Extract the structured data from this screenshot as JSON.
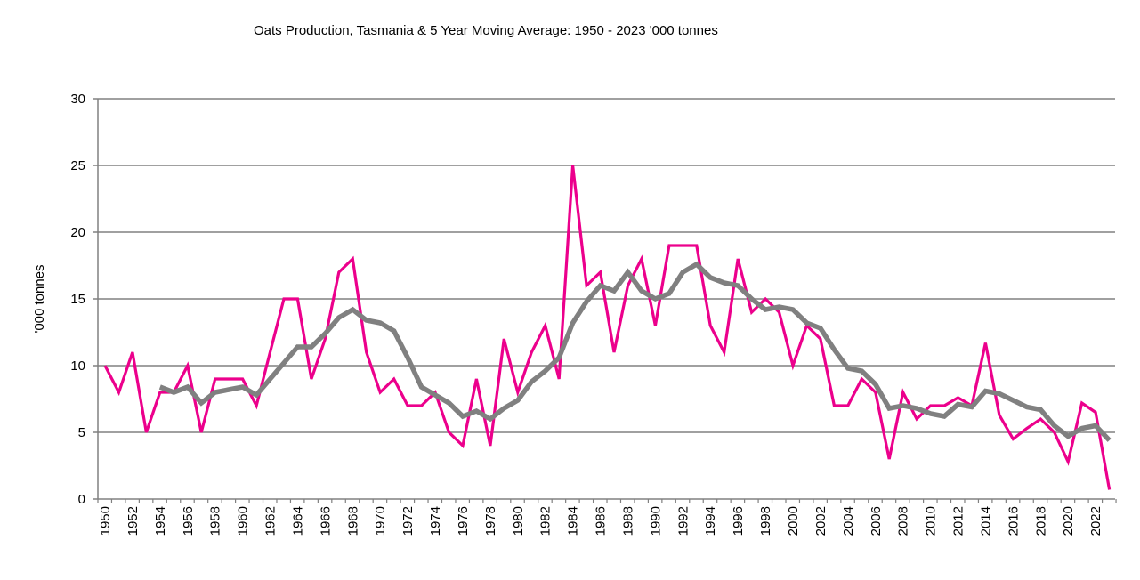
{
  "chart_data": {
    "type": "line",
    "title": "Oats Production, Tasmania & 5 Year Moving Average: 1950 - 2023  '000 tonnes",
    "xlabel": "",
    "ylabel": "'000 tonnes",
    "ylim": [
      0,
      30
    ],
    "yticks": [
      0,
      5,
      10,
      15,
      20,
      25,
      30
    ],
    "xlim": [
      1950,
      2023
    ],
    "xtick_step": 2,
    "grid": true,
    "legend": "none",
    "x": [
      1950,
      1951,
      1952,
      1953,
      1954,
      1955,
      1956,
      1957,
      1958,
      1959,
      1960,
      1961,
      1962,
      1963,
      1964,
      1965,
      1966,
      1967,
      1968,
      1969,
      1970,
      1971,
      1972,
      1973,
      1974,
      1975,
      1976,
      1977,
      1978,
      1979,
      1980,
      1981,
      1982,
      1983,
      1984,
      1985,
      1986,
      1987,
      1988,
      1989,
      1990,
      1991,
      1992,
      1993,
      1994,
      1995,
      1996,
      1997,
      1998,
      1999,
      2000,
      2001,
      2002,
      2003,
      2004,
      2005,
      2006,
      2007,
      2008,
      2009,
      2010,
      2011,
      2012,
      2013,
      2014,
      2015,
      2016,
      2017,
      2018,
      2019,
      2020,
      2021,
      2022,
      2023
    ],
    "series": [
      {
        "name": "Oats Production",
        "color": "#ec008c",
        "values": [
          10,
          8,
          11,
          5,
          8,
          8,
          10,
          5,
          9,
          9,
          9,
          7,
          11,
          15,
          15,
          9,
          12,
          17,
          18,
          11,
          8,
          9,
          7,
          7,
          8,
          5,
          4,
          9,
          4,
          12,
          8,
          11,
          13,
          9,
          25,
          16,
          17,
          11,
          16,
          18,
          13,
          19,
          19,
          19,
          13,
          11,
          18,
          14,
          15,
          14,
          10,
          13,
          12,
          7,
          7,
          9,
          8,
          3,
          8,
          6,
          7,
          7,
          7.6,
          7,
          11.7,
          6.3,
          4.5,
          5.3,
          6,
          5,
          2.8,
          7.2,
          6.5,
          0.7
        ]
      },
      {
        "name": "5 Year Moving Average",
        "color": "#808080",
        "values": [
          null,
          null,
          null,
          null,
          8.4,
          8.0,
          8.4,
          7.2,
          8.0,
          8.2,
          8.4,
          7.8,
          9.0,
          10.2,
          11.4,
          11.4,
          12.4,
          13.6,
          14.2,
          13.4,
          13.2,
          12.6,
          10.6,
          8.4,
          7.8,
          7.2,
          6.2,
          6.6,
          6.0,
          6.8,
          7.4,
          8.8,
          9.6,
          10.6,
          13.2,
          14.8,
          16.0,
          15.6,
          17.0,
          15.6,
          15.0,
          15.4,
          17.0,
          17.6,
          16.6,
          16.2,
          16.0,
          15.0,
          14.2,
          14.4,
          14.2,
          13.2,
          12.8,
          11.2,
          9.8,
          9.6,
          8.6,
          6.8,
          7.0,
          6.8,
          6.4,
          6.2,
          7.1,
          6.9,
          8.1,
          7.9,
          7.4,
          6.9,
          6.7,
          5.5,
          4.7,
          5.3,
          5.5,
          4.4
        ]
      }
    ]
  }
}
